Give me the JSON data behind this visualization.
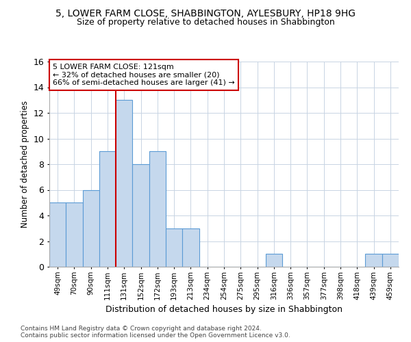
{
  "title": "5, LOWER FARM CLOSE, SHABBINGTON, AYLESBURY, HP18 9HG",
  "subtitle": "Size of property relative to detached houses in Shabbington",
  "xlabel": "Distribution of detached houses by size in Shabbington",
  "ylabel": "Number of detached properties",
  "footer_line1": "Contains HM Land Registry data © Crown copyright and database right 2024.",
  "footer_line2": "Contains public sector information licensed under the Open Government Licence v3.0.",
  "categories": [
    "49sqm",
    "70sqm",
    "90sqm",
    "111sqm",
    "131sqm",
    "152sqm",
    "172sqm",
    "193sqm",
    "213sqm",
    "234sqm",
    "254sqm",
    "275sqm",
    "295sqm",
    "316sqm",
    "336sqm",
    "357sqm",
    "377sqm",
    "398sqm",
    "418sqm",
    "439sqm",
    "459sqm"
  ],
  "values": [
    5,
    5,
    6,
    9,
    13,
    8,
    9,
    3,
    3,
    0,
    0,
    0,
    0,
    1,
    0,
    0,
    0,
    0,
    0,
    1,
    1
  ],
  "bar_color": "#c5d8ed",
  "bar_edge_color": "#5b9bd5",
  "grid_color": "#c8d4e3",
  "annotation_line1": "5 LOWER FARM CLOSE: 121sqm",
  "annotation_line2": "← 32% of detached houses are smaller (20)",
  "annotation_line3": "66% of semi-detached houses are larger (41) →",
  "annotation_box_edge": "#cc0000",
  "vline_color": "#cc0000",
  "ylim": [
    0,
    16
  ],
  "yticks": [
    0,
    2,
    4,
    6,
    8,
    10,
    12,
    14,
    16
  ],
  "vline_pos": 4.0
}
